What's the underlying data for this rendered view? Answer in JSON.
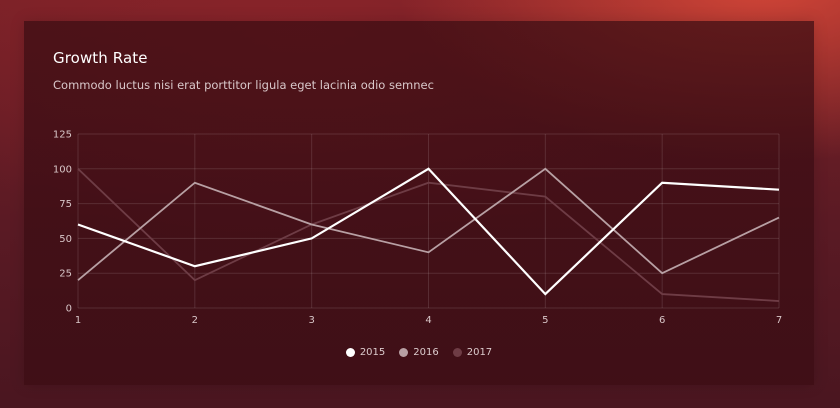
{
  "card": {
    "title": "Growth Rate",
    "subtitle": "Commodo luctus nisi erat porttitor ligula eget lacinia odio semnec"
  },
  "chart_data": {
    "type": "line",
    "title": "Growth Rate",
    "subtitle": "Commodo luctus nisi erat porttitor ligula eget lacinia odio semnec",
    "x": [
      1,
      2,
      3,
      4,
      5,
      6,
      7
    ],
    "xlabel": "",
    "ylabel": "",
    "ylim": [
      0,
      125
    ],
    "yticks": [
      0,
      25,
      50,
      75,
      100,
      125
    ],
    "grid": true,
    "legend_position": "bottom",
    "series": [
      {
        "name": "2015",
        "values": [
          60,
          30,
          50,
          100,
          10,
          90,
          85
        ],
        "color": "#ffffff"
      },
      {
        "name": "2016",
        "values": [
          20,
          90,
          60,
          40,
          100,
          25,
          65
        ],
        "color": "#b8a0a4"
      },
      {
        "name": "2017",
        "values": [
          100,
          20,
          60,
          90,
          80,
          10,
          5
        ],
        "color": "#6e3c45"
      }
    ]
  }
}
